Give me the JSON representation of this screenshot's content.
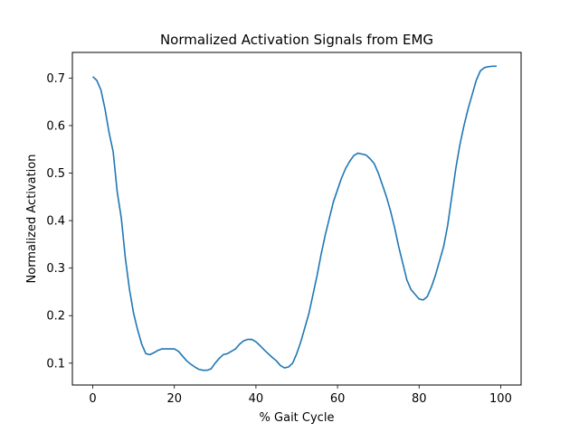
{
  "chart_data": {
    "type": "line",
    "title": "Normalized Activation Signals from EMG",
    "xlabel": "% Gait Cycle",
    "ylabel": "Normalized Activation",
    "xlim": [
      -5,
      105
    ],
    "ylim": [
      0.054,
      0.754
    ],
    "xticks": [
      0,
      20,
      40,
      60,
      80,
      100
    ],
    "yticks": [
      0.1,
      0.2,
      0.3,
      0.4,
      0.5,
      0.6,
      0.7
    ],
    "ytick_labels": [
      "0.1",
      "0.2",
      "0.3",
      "0.4",
      "0.5",
      "0.6",
      "0.7"
    ],
    "grid": false,
    "series": [
      {
        "color": "#1f77b4",
        "x": [
          0,
          1,
          2,
          3,
          4,
          5,
          6,
          7,
          8,
          9,
          10,
          11,
          12,
          13,
          14,
          15,
          16,
          17,
          18,
          19,
          20,
          21,
          22,
          23,
          24,
          25,
          26,
          27,
          28,
          29,
          30,
          31,
          32,
          33,
          34,
          35,
          36,
          37,
          38,
          39,
          40,
          41,
          42,
          43,
          44,
          45,
          46,
          47,
          48,
          49,
          50,
          51,
          52,
          53,
          54,
          55,
          56,
          57,
          58,
          59,
          60,
          61,
          62,
          63,
          64,
          65,
          66,
          67,
          68,
          69,
          70,
          71,
          72,
          73,
          74,
          75,
          76,
          77,
          78,
          79,
          80,
          81,
          82,
          83,
          84,
          85,
          86,
          87,
          88,
          89,
          90,
          91,
          92,
          93,
          94,
          95,
          96,
          97,
          98,
          99
        ],
        "y": [
          0.703,
          0.695,
          0.675,
          0.635,
          0.585,
          0.545,
          0.46,
          0.405,
          0.32,
          0.255,
          0.205,
          0.17,
          0.14,
          0.12,
          0.118,
          0.122,
          0.127,
          0.13,
          0.13,
          0.13,
          0.13,
          0.125,
          0.115,
          0.105,
          0.098,
          0.092,
          0.087,
          0.085,
          0.085,
          0.088,
          0.1,
          0.11,
          0.118,
          0.12,
          0.125,
          0.13,
          0.14,
          0.147,
          0.15,
          0.15,
          0.145,
          0.137,
          0.128,
          0.12,
          0.112,
          0.105,
          0.095,
          0.09,
          0.092,
          0.1,
          0.12,
          0.145,
          0.175,
          0.205,
          0.245,
          0.285,
          0.33,
          0.37,
          0.405,
          0.44,
          0.465,
          0.49,
          0.51,
          0.525,
          0.537,
          0.542,
          0.54,
          0.538,
          0.53,
          0.52,
          0.5,
          0.475,
          0.45,
          0.42,
          0.385,
          0.345,
          0.31,
          0.275,
          0.255,
          0.245,
          0.235,
          0.233,
          0.24,
          0.26,
          0.285,
          0.315,
          0.345,
          0.39,
          0.45,
          0.51,
          0.56,
          0.6,
          0.635,
          0.665,
          0.695,
          0.715,
          0.722,
          0.724,
          0.725,
          0.725
        ]
      }
    ]
  }
}
